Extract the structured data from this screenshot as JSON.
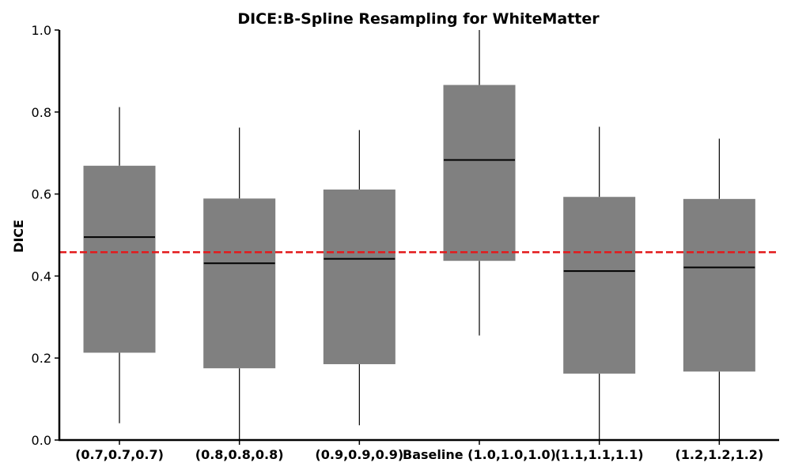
{
  "chart_data": {
    "type": "box",
    "title": "DICE:B-Spline Resampling for WhiteMatter",
    "xlabel": "",
    "ylabel": "DICE",
    "ylim": [
      0.0,
      1.0
    ],
    "yticks": [
      0.0,
      0.2,
      0.4,
      0.6,
      0.8,
      1.0
    ],
    "ytick_labels": [
      "0.0",
      "0.2",
      "0.4",
      "0.6",
      "0.8",
      "1.0"
    ],
    "categories": [
      "(0.7,0.7,0.7)",
      "(0.8,0.8,0.8)",
      "(0.9,0.9,0.9)",
      "Baseline (1.0,1.0,1.0)",
      "(1.1,1.1,1.1)",
      "(1.2,1.2,1.2)"
    ],
    "boxes": [
      {
        "whisker_low": 0.041,
        "q1": 0.213,
        "median": 0.495,
        "q3": 0.669,
        "whisker_high": 0.812
      },
      {
        "whisker_low": 0.0,
        "q1": 0.175,
        "median": 0.431,
        "q3": 0.589,
        "whisker_high": 0.762
      },
      {
        "whisker_low": 0.036,
        "q1": 0.185,
        "median": 0.442,
        "q3": 0.611,
        "whisker_high": 0.756
      },
      {
        "whisker_low": 0.255,
        "q1": 0.437,
        "median": 0.683,
        "q3": 0.866,
        "whisker_high": 1.0
      },
      {
        "whisker_low": 0.0,
        "q1": 0.162,
        "median": 0.412,
        "q3": 0.593,
        "whisker_high": 0.764
      },
      {
        "whisker_low": 0.0,
        "q1": 0.167,
        "median": 0.421,
        "q3": 0.588,
        "whisker_high": 0.735
      }
    ],
    "reference_line": {
      "y": 0.458,
      "style": "dashed"
    },
    "colors": {
      "box_fill": "#808080",
      "median": "#000000",
      "whisker": "#000000",
      "reference_line": "#e31a1c",
      "axis": "#000000"
    },
    "grid": false,
    "legend": "none"
  }
}
